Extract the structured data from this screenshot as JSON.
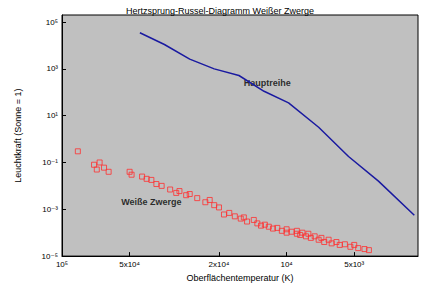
{
  "chart_data": {
    "type": "scatter",
    "title": "Hertzsprung-Russel-Diagramm Weißer Zwerge",
    "x_label": "Oberflächentemperatur (K)",
    "y_label": "Leuchtkraft (Sonne = 1)",
    "log": true,
    "grid": false,
    "xlim": [
      100000,
      2600
    ],
    "ylim": [
      1e-05,
      200000
    ],
    "xticks": [
      {
        "value": 100000,
        "label": "10⁵"
      },
      {
        "value": 50000,
        "label": "5x10⁴"
      },
      {
        "value": 20000,
        "label": "2x10⁴"
      },
      {
        "value": 10000,
        "label": "10⁴"
      },
      {
        "value": 5000,
        "label": "5x10³"
      }
    ],
    "yticks": [
      {
        "value": 100000,
        "label": "10⁵"
      },
      {
        "value": 1000,
        "label": "10³"
      },
      {
        "value": 10,
        "label": "10¹"
      },
      {
        "value": 0.1,
        "label": "10⁻¹"
      },
      {
        "value": 0.001,
        "label": "10⁻³"
      },
      {
        "value": 1e-05,
        "label": "10⁻⁵"
      }
    ],
    "series": [
      {
        "type": "line",
        "color": "#1a1aa0",
        "line_style": "solid",
        "x": [
          45000,
          35000,
          27000,
          21000,
          16300,
          12600,
          9800,
          7200,
          5300,
          3900,
          2700
        ],
        "values": [
          35000,
          11000,
          2600,
          1000,
          520,
          110,
          35,
          3.2,
          0.18,
          0.016,
          0.00056
        ]
      },
      {
        "type": "scatter",
        "color": "#ff3030",
        "marker": "square",
        "x": [
          85000,
          72000,
          70000,
          68000,
          65000,
          62000,
          50000,
          49000,
          44000,
          42000,
          40000,
          38000,
          36000,
          33000,
          31000,
          30000,
          28000,
          27000,
          25000,
          23000,
          22000,
          21000,
          20000,
          19000,
          18000,
          17000,
          16000,
          15500,
          15000,
          14000,
          13500,
          13000,
          12500,
          12000,
          11500,
          11000,
          10500,
          10000,
          10000,
          9500,
          9000,
          9000,
          8700,
          8500,
          8200,
          8000,
          7800,
          7500,
          7200,
          7000,
          6800,
          6500,
          6300,
          6000,
          5800,
          5500,
          5200,
          5000,
          4800,
          4500,
          4300
        ],
        "values": [
          0.3,
          0.08,
          0.05,
          0.1,
          0.06,
          0.04,
          0.04,
          0.03,
          0.025,
          0.02,
          0.018,
          0.012,
          0.01,
          0.007,
          0.005,
          0.006,
          0.004,
          0.0045,
          0.003,
          0.002,
          0.0025,
          0.0015,
          0.0012,
          0.0006,
          0.0007,
          0.0005,
          0.0004,
          0.00045,
          0.0003,
          0.00035,
          0.00025,
          0.0002,
          0.00022,
          0.00018,
          0.00015,
          0.00016,
          0.00012,
          0.0001,
          0.00014,
          0.00011,
          9e-05,
          0.00012,
          8e-05,
          0.0001,
          7e-05,
          9e-05,
          6e-05,
          7e-05,
          5e-05,
          6e-05,
          4e-05,
          5e-05,
          3.5e-05,
          4e-05,
          3e-05,
          3.2e-05,
          2.5e-05,
          3e-05,
          2.2e-05,
          2e-05,
          1.8e-05
        ]
      }
    ],
    "annotations": [
      {
        "text": "Hauptreihe",
        "x": 12200,
        "y": 240
      },
      {
        "text": "Weiße Zwerge",
        "x": 40000,
        "y": 0.002
      }
    ]
  }
}
